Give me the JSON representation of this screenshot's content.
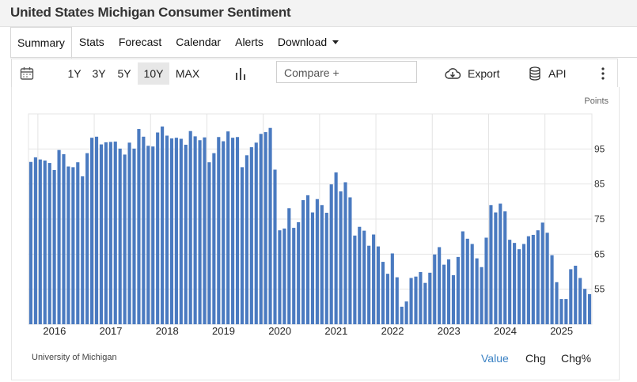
{
  "page": {
    "title": "United States Michigan Consumer Sentiment"
  },
  "tabs": [
    "Summary",
    "Stats",
    "Forecast",
    "Calendar",
    "Alerts",
    "Download"
  ],
  "active_tab": "Summary",
  "toolbar": {
    "ranges": [
      "1Y",
      "3Y",
      "5Y",
      "10Y",
      "MAX"
    ],
    "active_range": "10Y",
    "compare_placeholder": "Compare +",
    "export_label": "Export",
    "api_label": "API"
  },
  "icons": [
    "calendar-icon",
    "bar-chart-icon",
    "cloud-download-icon",
    "database-icon",
    "more-vert-icon",
    "caret-down-icon"
  ],
  "colors": {
    "bar": "#4a7ac0",
    "accent": "#3b82c4",
    "grid": "#e4e4e4"
  },
  "source": "University of Michigan",
  "value_modes": [
    "Value",
    "Chg",
    "Chg%"
  ],
  "active_value_mode": "Value",
  "chart_data": {
    "type": "bar",
    "ylabel": "Points",
    "y_ticks": [
      55,
      65,
      75,
      85,
      95
    ],
    "ylim": [
      45,
      105
    ],
    "x_start": "2015-11",
    "x_end": "2025-10",
    "x_ticks": [
      "2016",
      "2017",
      "2018",
      "2019",
      "2020",
      "2021",
      "2022",
      "2023",
      "2024",
      "2025"
    ],
    "grid": true,
    "series": [
      {
        "dates": [
          "2015-11",
          "2015-12",
          "2016-01",
          "2016-02",
          "2016-03",
          "2016-04",
          "2016-05",
          "2016-06",
          "2016-07",
          "2016-08",
          "2016-09",
          "2016-10",
          "2016-11",
          "2016-12",
          "2017-01",
          "2017-02",
          "2017-03",
          "2017-04",
          "2017-05",
          "2017-06",
          "2017-07",
          "2017-08",
          "2017-09",
          "2017-10",
          "2017-11",
          "2017-12",
          "2018-01",
          "2018-02",
          "2018-03",
          "2018-04",
          "2018-05",
          "2018-06",
          "2018-07",
          "2018-08",
          "2018-09",
          "2018-10",
          "2018-11",
          "2018-12",
          "2019-01",
          "2019-02",
          "2019-03",
          "2019-04",
          "2019-05",
          "2019-06",
          "2019-07",
          "2019-08",
          "2019-09",
          "2019-10",
          "2019-11",
          "2019-12",
          "2020-01",
          "2020-02",
          "2020-03",
          "2020-04",
          "2020-05",
          "2020-06",
          "2020-07",
          "2020-08",
          "2020-09",
          "2020-10",
          "2020-11",
          "2020-12",
          "2021-01",
          "2021-02",
          "2021-03",
          "2021-04",
          "2021-05",
          "2021-06",
          "2021-07",
          "2021-08",
          "2021-09",
          "2021-10",
          "2021-11",
          "2021-12",
          "2022-01",
          "2022-02",
          "2022-03",
          "2022-04",
          "2022-05",
          "2022-06",
          "2022-07",
          "2022-08",
          "2022-09",
          "2022-10",
          "2022-11",
          "2022-12",
          "2023-01",
          "2023-02",
          "2023-03",
          "2023-04",
          "2023-05",
          "2023-06",
          "2023-07",
          "2023-08",
          "2023-09",
          "2023-10",
          "2023-11",
          "2023-12",
          "2024-01",
          "2024-02",
          "2024-03",
          "2024-04",
          "2024-05",
          "2024-06",
          "2024-07",
          "2024-08",
          "2024-09",
          "2024-10",
          "2024-11",
          "2024-12",
          "2025-01",
          "2025-02",
          "2025-03",
          "2025-04",
          "2025-05",
          "2025-06",
          "2025-07",
          "2025-08",
          "2025-09",
          "2025-10"
        ],
        "values": [
          91.3,
          92.6,
          92.0,
          91.7,
          91.0,
          89.0,
          94.7,
          93.5,
          90.0,
          89.8,
          91.2,
          87.2,
          93.8,
          98.2,
          98.5,
          96.3,
          96.9,
          97.0,
          97.1,
          95.1,
          93.4,
          96.8,
          95.1,
          100.7,
          98.5,
          95.9,
          95.7,
          99.7,
          101.4,
          98.8,
          98.0,
          98.2,
          97.9,
          96.2,
          100.1,
          98.6,
          97.5,
          98.3,
          91.2,
          93.8,
          98.4,
          97.2,
          100.0,
          98.2,
          98.4,
          89.8,
          93.2,
          95.5,
          96.8,
          99.3,
          99.8,
          101.0,
          89.1,
          71.8,
          72.3,
          78.1,
          72.5,
          74.1,
          80.4,
          81.8,
          76.9,
          80.7,
          79.0,
          76.8,
          84.9,
          88.3,
          82.9,
          85.5,
          81.2,
          70.3,
          72.8,
          71.7,
          67.4,
          70.6,
          67.2,
          62.8,
          59.4,
          65.2,
          58.4,
          50.0,
          51.5,
          58.2,
          58.6,
          59.9,
          56.8,
          59.7,
          64.9,
          67.0,
          62.0,
          63.5,
          59.0,
          64.2,
          71.5,
          69.4,
          67.9,
          63.8,
          61.3,
          69.7,
          79.0,
          76.9,
          79.4,
          77.2,
          69.1,
          68.2,
          66.4,
          67.9,
          70.1,
          70.5,
          71.8,
          74.0,
          71.1,
          64.7,
          57.0,
          52.2,
          52.2,
          60.7,
          61.7,
          58.2,
          55.1,
          53.6
        ]
      }
    ]
  }
}
